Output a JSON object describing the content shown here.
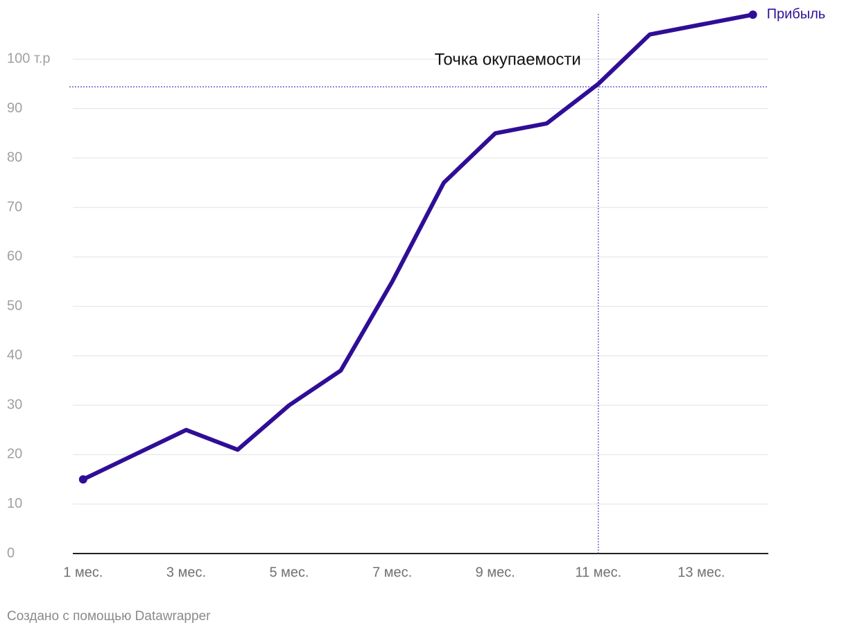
{
  "chart_data": {
    "type": "line",
    "x": [
      1,
      2,
      3,
      4,
      5,
      6,
      7,
      8,
      9,
      10,
      11,
      12,
      13,
      14
    ],
    "xlim": [
      0.8,
      14.3
    ],
    "xticks": [
      {
        "value": 1,
        "label": "1 мес."
      },
      {
        "value": 3,
        "label": "3 мес."
      },
      {
        "value": 5,
        "label": "5 мес."
      },
      {
        "value": 7,
        "label": "7 мес."
      },
      {
        "value": 9,
        "label": "9 мес."
      },
      {
        "value": 11,
        "label": "11 мес."
      },
      {
        "value": 13,
        "label": "13 мес."
      }
    ],
    "ylim": [
      0,
      110
    ],
    "yticks": [
      0,
      10,
      20,
      30,
      40,
      50,
      60,
      70,
      80,
      90,
      {
        "value": 100,
        "label": "100 т.р"
      }
    ],
    "grid": true,
    "series": [
      {
        "name": "Прибыль",
        "color": "#2f0e96",
        "values": [
          15,
          20,
          25,
          21,
          30,
          37,
          55,
          75,
          85,
          87,
          95,
          105,
          107,
          109
        ]
      }
    ],
    "annotation": {
      "text": "Точка окупаемости",
      "x": 11,
      "y": 94.4,
      "color": "#5a4fc9"
    },
    "footer": "Создано с помощью Datawrapper"
  }
}
